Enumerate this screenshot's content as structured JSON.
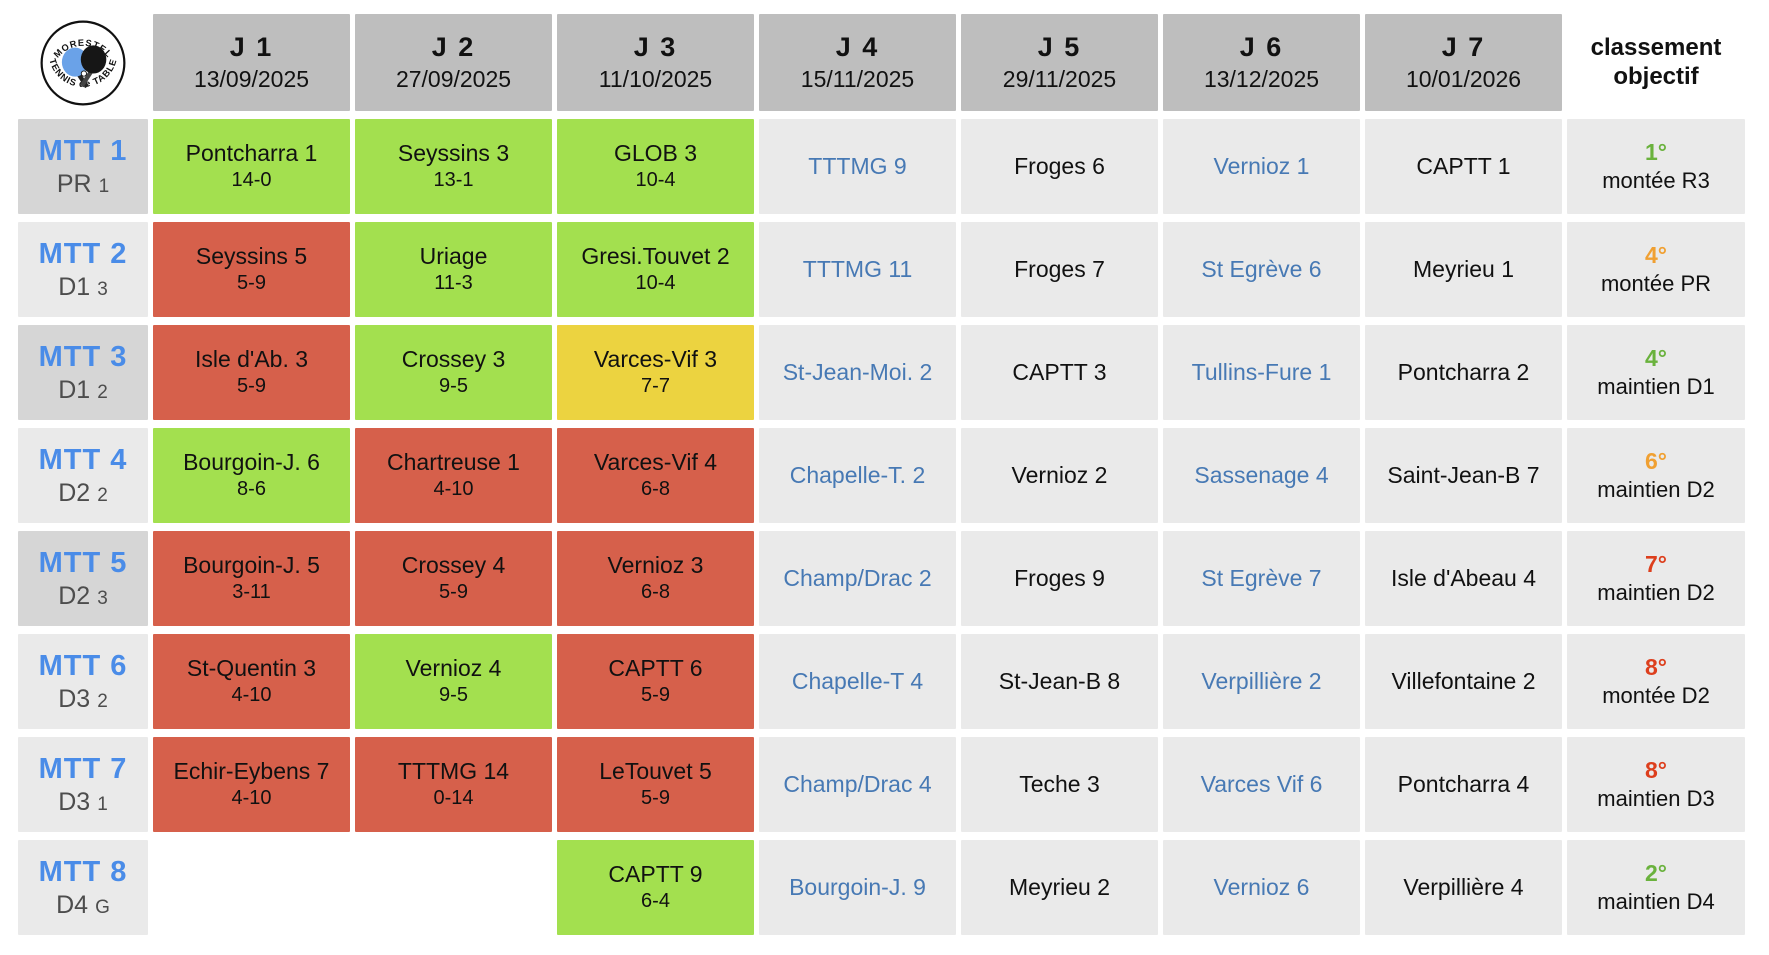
{
  "logo": {
    "top": "MORESTEL",
    "bottom": "TENNIS de TABLE"
  },
  "header": {
    "rounds": [
      {
        "label": "J 1",
        "date": "13/09/2025"
      },
      {
        "label": "J 2",
        "date": "27/09/2025"
      },
      {
        "label": "J 3",
        "date": "11/10/2025"
      },
      {
        "label": "J 4",
        "date": "15/11/2025"
      },
      {
        "label": "J 5",
        "date": "29/11/2025"
      },
      {
        "label": "J 6",
        "date": "13/12/2025"
      },
      {
        "label": "J 7",
        "date": "10/01/2026"
      }
    ],
    "classement": {
      "line1": "classement",
      "line2": "objectif"
    }
  },
  "colors": {
    "win": "#a3e04f",
    "loss": "#d6604b",
    "draw": "#ecd340",
    "sched": "#eaeaea",
    "header": "#bebebe",
    "labeldark": "#d6d6d6",
    "labellight": "#eaeaea",
    "teamblue": "#4a8ce8",
    "schedblue": "#4779b4",
    "rankgreen": "#6ab23d",
    "rankorange": "#f0a032",
    "rankred": "#dd3f1d"
  },
  "rows": [
    {
      "team": "MTT 1",
      "division": "PR",
      "group": "1",
      "shade": "dark",
      "matches": [
        {
          "opponent": "Pontcharra 1",
          "score": "14-0",
          "status": "win"
        },
        {
          "opponent": "Seyssins 3",
          "score": "13-1",
          "status": "win"
        },
        {
          "opponent": "GLOB 3",
          "score": "10-4",
          "status": "win"
        },
        {
          "opponent": "TTTMG 9",
          "status": "blue"
        },
        {
          "opponent": "Froges 6",
          "status": "black"
        },
        {
          "opponent": "Vernioz 1",
          "status": "blue"
        },
        {
          "opponent": "CAPTT 1",
          "status": "black"
        }
      ],
      "objective": {
        "rank": "1°",
        "color": "green",
        "text": "montée R3"
      }
    },
    {
      "team": "MTT 2",
      "division": "D1",
      "group": "3",
      "shade": "light",
      "matches": [
        {
          "opponent": "Seyssins 5",
          "score": "5-9",
          "status": "loss"
        },
        {
          "opponent": "Uriage",
          "score": "11-3",
          "status": "win"
        },
        {
          "opponent": "Gresi.Touvet 2",
          "score": "10-4",
          "status": "win"
        },
        {
          "opponent": "TTTMG 11",
          "status": "blue"
        },
        {
          "opponent": "Froges 7",
          "status": "black"
        },
        {
          "opponent": "St Egrève 6",
          "status": "blue"
        },
        {
          "opponent": "Meyrieu 1",
          "status": "black"
        }
      ],
      "objective": {
        "rank": "4°",
        "color": "orange",
        "text": "montée PR"
      }
    },
    {
      "team": "MTT 3",
      "division": "D1",
      "group": "2",
      "shade": "dark",
      "matches": [
        {
          "opponent": "Isle d'Ab. 3",
          "score": "5-9",
          "status": "loss"
        },
        {
          "opponent": "Crossey 3",
          "score": "9-5",
          "status": "win"
        },
        {
          "opponent": "Varces-Vif 3",
          "score": "7-7",
          "status": "draw"
        },
        {
          "opponent": "St-Jean-Moi. 2",
          "status": "blue"
        },
        {
          "opponent": "CAPTT 3",
          "status": "black"
        },
        {
          "opponent": "Tullins-Fure 1",
          "status": "blue"
        },
        {
          "opponent": "Pontcharra 2",
          "status": "black"
        }
      ],
      "objective": {
        "rank": "4°",
        "color": "green",
        "text": "maintien D1"
      }
    },
    {
      "team": "MTT 4",
      "division": "D2",
      "group": "2",
      "shade": "light",
      "matches": [
        {
          "opponent": "Bourgoin-J. 6",
          "score": "8-6",
          "status": "win"
        },
        {
          "opponent": "Chartreuse 1",
          "score": "4-10",
          "status": "loss"
        },
        {
          "opponent": "Varces-Vif 4",
          "score": "6-8",
          "status": "loss"
        },
        {
          "opponent": "Chapelle-T. 2",
          "status": "blue"
        },
        {
          "opponent": "Vernioz 2",
          "status": "black"
        },
        {
          "opponent": "Sassenage 4",
          "status": "blue"
        },
        {
          "opponent": "Saint-Jean-B 7",
          "status": "black"
        }
      ],
      "objective": {
        "rank": "6°",
        "color": "orange",
        "text": "maintien D2"
      }
    },
    {
      "team": "MTT 5",
      "division": "D2",
      "group": "3",
      "shade": "dark",
      "matches": [
        {
          "opponent": "Bourgoin-J. 5",
          "score": "3-11",
          "status": "loss"
        },
        {
          "opponent": "Crossey 4",
          "score": "5-9",
          "status": "loss"
        },
        {
          "opponent": "Vernioz 3",
          "score": "6-8",
          "status": "loss"
        },
        {
          "opponent": "Champ/Drac 2",
          "status": "blue"
        },
        {
          "opponent": "Froges 9",
          "status": "black"
        },
        {
          "opponent": "St Egrève 7",
          "status": "blue"
        },
        {
          "opponent": "Isle d'Abeau 4",
          "status": "black"
        }
      ],
      "objective": {
        "rank": "7°",
        "color": "red",
        "text": "maintien D2"
      }
    },
    {
      "team": "MTT 6",
      "division": "D3",
      "group": "2",
      "shade": "light",
      "matches": [
        {
          "opponent": "St-Quentin 3",
          "score": "4-10",
          "status": "loss"
        },
        {
          "opponent": "Vernioz 4",
          "score": "9-5",
          "status": "win"
        },
        {
          "opponent": "CAPTT 6",
          "score": "5-9",
          "status": "loss"
        },
        {
          "opponent": "Chapelle-T 4",
          "status": "blue"
        },
        {
          "opponent": "St-Jean-B 8",
          "status": "black"
        },
        {
          "opponent": "Verpillière 2",
          "status": "blue"
        },
        {
          "opponent": "Villefontaine 2",
          "status": "black"
        }
      ],
      "objective": {
        "rank": "8°",
        "color": "red",
        "text": "montée D2"
      }
    },
    {
      "team": "MTT 7",
      "division": "D3",
      "group": "1",
      "shade": "light",
      "matches": [
        {
          "opponent": "Echir-Eybens 7",
          "score": "4-10",
          "status": "loss"
        },
        {
          "opponent": "TTTMG 14",
          "score": "0-14",
          "status": "loss"
        },
        {
          "opponent": "LeTouvet 5",
          "score": "5-9",
          "status": "loss"
        },
        {
          "opponent": "Champ/Drac 4",
          "status": "blue"
        },
        {
          "opponent": "Teche 3",
          "status": "black"
        },
        {
          "opponent": "Varces Vif 6",
          "status": "blue"
        },
        {
          "opponent": "Pontcharra 4",
          "status": "black"
        }
      ],
      "objective": {
        "rank": "8°",
        "color": "red",
        "text": "maintien D3"
      }
    },
    {
      "team": "MTT 8",
      "division": "D4",
      "group": "G",
      "shade": "light",
      "matches": [
        {
          "status": "empty"
        },
        {
          "status": "empty"
        },
        {
          "opponent": "CAPTT 9",
          "score": "6-4",
          "status": "win"
        },
        {
          "opponent": "Bourgoin-J. 9",
          "status": "blue"
        },
        {
          "opponent": "Meyrieu 2",
          "status": "black"
        },
        {
          "opponent": "Vernioz 6",
          "status": "blue"
        },
        {
          "opponent": "Verpillière 4",
          "status": "black"
        }
      ],
      "objective": {
        "rank": "2°",
        "color": "green",
        "text": "maintien D4"
      }
    }
  ]
}
